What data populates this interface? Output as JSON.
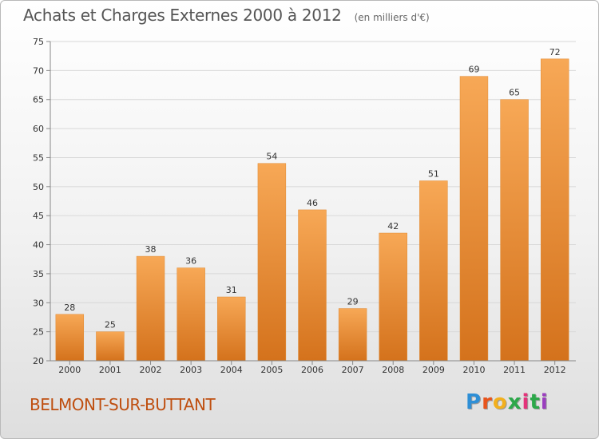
{
  "header": {
    "title": "Achats et Charges Externes 2000 à 2012",
    "unit": "(en milliers d'€)"
  },
  "footer": {
    "commune": "BELMONT-SUR-BUTTANT",
    "logo_letters": [
      "P",
      "r",
      "o",
      "x",
      "i",
      "t",
      "i"
    ]
  },
  "colors": {
    "bar_top": "#f7a856",
    "bar_bottom": "#d4721c",
    "commune_text": "#bf4f10",
    "logo": [
      "#2e8fd6",
      "#e8541c",
      "#f2b01e",
      "#2ca84a",
      "#e4337a",
      "#2ca84a",
      "#9b3fbf"
    ]
  },
  "chart_data": {
    "type": "bar",
    "title": "Achats et Charges Externes 2000 à 2012",
    "categories": [
      "2000",
      "2001",
      "2002",
      "2003",
      "2004",
      "2005",
      "2006",
      "2007",
      "2008",
      "2009",
      "2010",
      "2011",
      "2012"
    ],
    "values": [
      28,
      25,
      38,
      36,
      31,
      54,
      46,
      29,
      42,
      51,
      69,
      65,
      72
    ],
    "ylim": [
      20,
      75
    ],
    "yticks": [
      20,
      25,
      30,
      35,
      40,
      45,
      50,
      55,
      60,
      65,
      70,
      75
    ],
    "grid": true,
    "xlabel": "",
    "ylabel": ""
  }
}
